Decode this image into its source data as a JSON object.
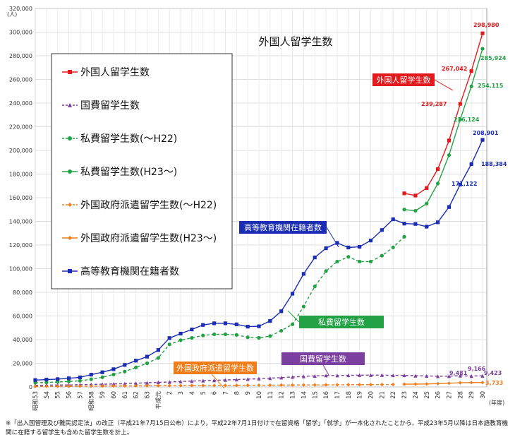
{
  "chart_data": {
    "type": "line",
    "title": "外国人留学生数",
    "y_unit": "(人)",
    "x_unit": "(年度)",
    "ylim": [
      0,
      320000
    ],
    "y_ticks": [
      "0",
      "20,000",
      "40,000",
      "60,000",
      "80,000",
      "100,000",
      "120,000",
      "140,000",
      "160,000",
      "180,000",
      "200,000",
      "220,000",
      "240,000",
      "260,000",
      "280,000",
      "300,000",
      "320,000"
    ],
    "categories": [
      "昭和53",
      "54",
      "55",
      "56",
      "57",
      "昭和58",
      "59",
      "60",
      "61",
      "62",
      "63",
      "平成元",
      "2",
      "3",
      "4",
      "5",
      "6",
      "7",
      "8",
      "9",
      "10",
      "11",
      "12",
      "13",
      "14",
      "15",
      "16",
      "17",
      "18",
      "19",
      "20",
      "21",
      "22",
      "23",
      "24",
      "25",
      "26",
      "27",
      "28",
      "29",
      "30"
    ],
    "series": [
      {
        "name": "外国人留学生数",
        "color": "#e31a1c",
        "marker": "square",
        "dash": "",
        "values": [
          null,
          null,
          null,
          null,
          null,
          null,
          null,
          null,
          null,
          null,
          null,
          null,
          null,
          null,
          null,
          null,
          null,
          null,
          null,
          null,
          null,
          null,
          null,
          null,
          null,
          null,
          null,
          null,
          null,
          null,
          null,
          null,
          null,
          163697,
          161848,
          168145,
          184155,
          208379,
          239287,
          267042,
          298980
        ]
      },
      {
        "name": "国費留学生数",
        "color": "#7b3fa0",
        "marker": "triangle",
        "dash": "4,3",
        "values": [
          1300,
          1500,
          1600,
          1700,
          1900,
          2100,
          2300,
          2500,
          2800,
          3100,
          3500,
          3900,
          4200,
          4600,
          4900,
          5300,
          5600,
          5900,
          6200,
          6600,
          7000,
          7400,
          7900,
          8400,
          8900,
          9300,
          9700,
          9700,
          9800,
          10000,
          10000,
          10000,
          9800,
          9800,
          9500,
          9300,
          9000,
          9100,
          9481,
          9166,
          9423
        ]
      },
      {
        "name": "私費留学生数(〜H22)",
        "color": "#23a245",
        "marker": "circle",
        "dash": "4,3",
        "values": [
          3500,
          3800,
          4200,
          4600,
          5200,
          6500,
          8200,
          10500,
          13000,
          16500,
          20000,
          24500,
          36000,
          39500,
          41500,
          43500,
          44500,
          44500,
          44000,
          42000,
          41500,
          43000,
          47500,
          53000,
          68000,
          85000,
          98000,
          106000,
          110000,
          106000,
          106000,
          111000,
          118000,
          127000,
          null,
          null,
          null,
          null,
          null,
          null,
          null
        ]
      },
      {
        "name": "私費留学生数(H23〜)",
        "color": "#23a245",
        "marker": "circle",
        "dash": "",
        "values": [
          null,
          null,
          null,
          null,
          null,
          null,
          null,
          null,
          null,
          null,
          null,
          null,
          null,
          null,
          null,
          null,
          null,
          null,
          null,
          null,
          null,
          null,
          null,
          null,
          null,
          null,
          null,
          null,
          null,
          null,
          null,
          null,
          null,
          150000,
          149000,
          155000,
          172000,
          196000,
          226124,
          254115,
          285924
        ]
      },
      {
        "name": "外国政府派遣留学生数(〜H22)",
        "color": "#f07d1a",
        "marker": "diamond",
        "dash": "4,3",
        "values": [
          500,
          500,
          550,
          600,
          650,
          700,
          750,
          800,
          850,
          900,
          950,
          1000,
          1050,
          1100,
          1150,
          1200,
          1250,
          1300,
          1350,
          1400,
          1450,
          1500,
          1550,
          1600,
          1650,
          1700,
          1750,
          1800,
          1850,
          1900,
          1950,
          2000,
          2100,
          null,
          null,
          null,
          null,
          null,
          null,
          null,
          null
        ]
      },
      {
        "name": "外国政府派遣留学生数(H23〜)",
        "color": "#f07d1a",
        "marker": "diamond",
        "dash": "",
        "values": [
          null,
          null,
          null,
          null,
          null,
          null,
          null,
          null,
          null,
          null,
          null,
          null,
          null,
          null,
          null,
          null,
          null,
          null,
          null,
          null,
          null,
          null,
          null,
          null,
          null,
          null,
          null,
          null,
          null,
          null,
          null,
          null,
          null,
          2300,
          2400,
          2500,
          2800,
          3100,
          3500,
          3700,
          3733
        ]
      },
      {
        "name": "高等教育機関在籍者数",
        "color": "#1a2db4",
        "marker": "square",
        "dash": "",
        "values": [
          5800,
          6200,
          6600,
          7300,
          8100,
          10400,
          12400,
          15000,
          18600,
          22200,
          25600,
          31200,
          41300,
          45100,
          48600,
          52400,
          53800,
          53800,
          52900,
          51000,
          51300,
          55800,
          64000,
          78800,
          95600,
          109500,
          117300,
          121800,
          117900,
          118500,
          123800,
          132700,
          141800,
          138100,
          137800,
          135500,
          139200,
          152100,
          171122,
          188384,
          208901
        ]
      }
    ],
    "data_labels": [
      {
        "text": "298,980",
        "color": "#e31a1c"
      },
      {
        "text": "267,042",
        "color": "#e31a1c"
      },
      {
        "text": "239,287",
        "color": "#e31a1c"
      },
      {
        "text": "285,924",
        "color": "#23a245"
      },
      {
        "text": "254,115",
        "color": "#23a245"
      },
      {
        "text": "226,124",
        "color": "#23a245"
      },
      {
        "text": "208,901",
        "color": "#1a2db4"
      },
      {
        "text": "188,384",
        "color": "#1a2db4"
      },
      {
        "text": "171,122",
        "color": "#1a2db4"
      },
      {
        "text": "9,481",
        "color": "#7b3fa0"
      },
      {
        "text": "9,166",
        "color": "#7b3fa0"
      },
      {
        "text": "9,423",
        "color": "#7b3fa0"
      },
      {
        "text": "3,733",
        "color": "#f07d1a"
      }
    ],
    "callouts": [
      {
        "text": "外国人留学生数",
        "color": "#e31a1c"
      },
      {
        "text": "高等教育機関在籍者数",
        "color": "#1a2db4"
      },
      {
        "text": "私費留学生数",
        "color": "#23a245"
      },
      {
        "text": "国費留学生数",
        "color": "#7b3fa0"
      },
      {
        "text": "外国政府派遣留学生数",
        "color": "#f07d1a"
      }
    ],
    "legend_position": "top-left",
    "grid": true
  },
  "footnote": "※「出入国管理及び難民認定法」の改正（平成21年7月15日公布）により，平成22年7月1日付けで在留資格「留学」「就学」が一本化されたことから，平成23年5月以降は日本語教育機関に在籍する留学生も含めた留学生数を計上。"
}
